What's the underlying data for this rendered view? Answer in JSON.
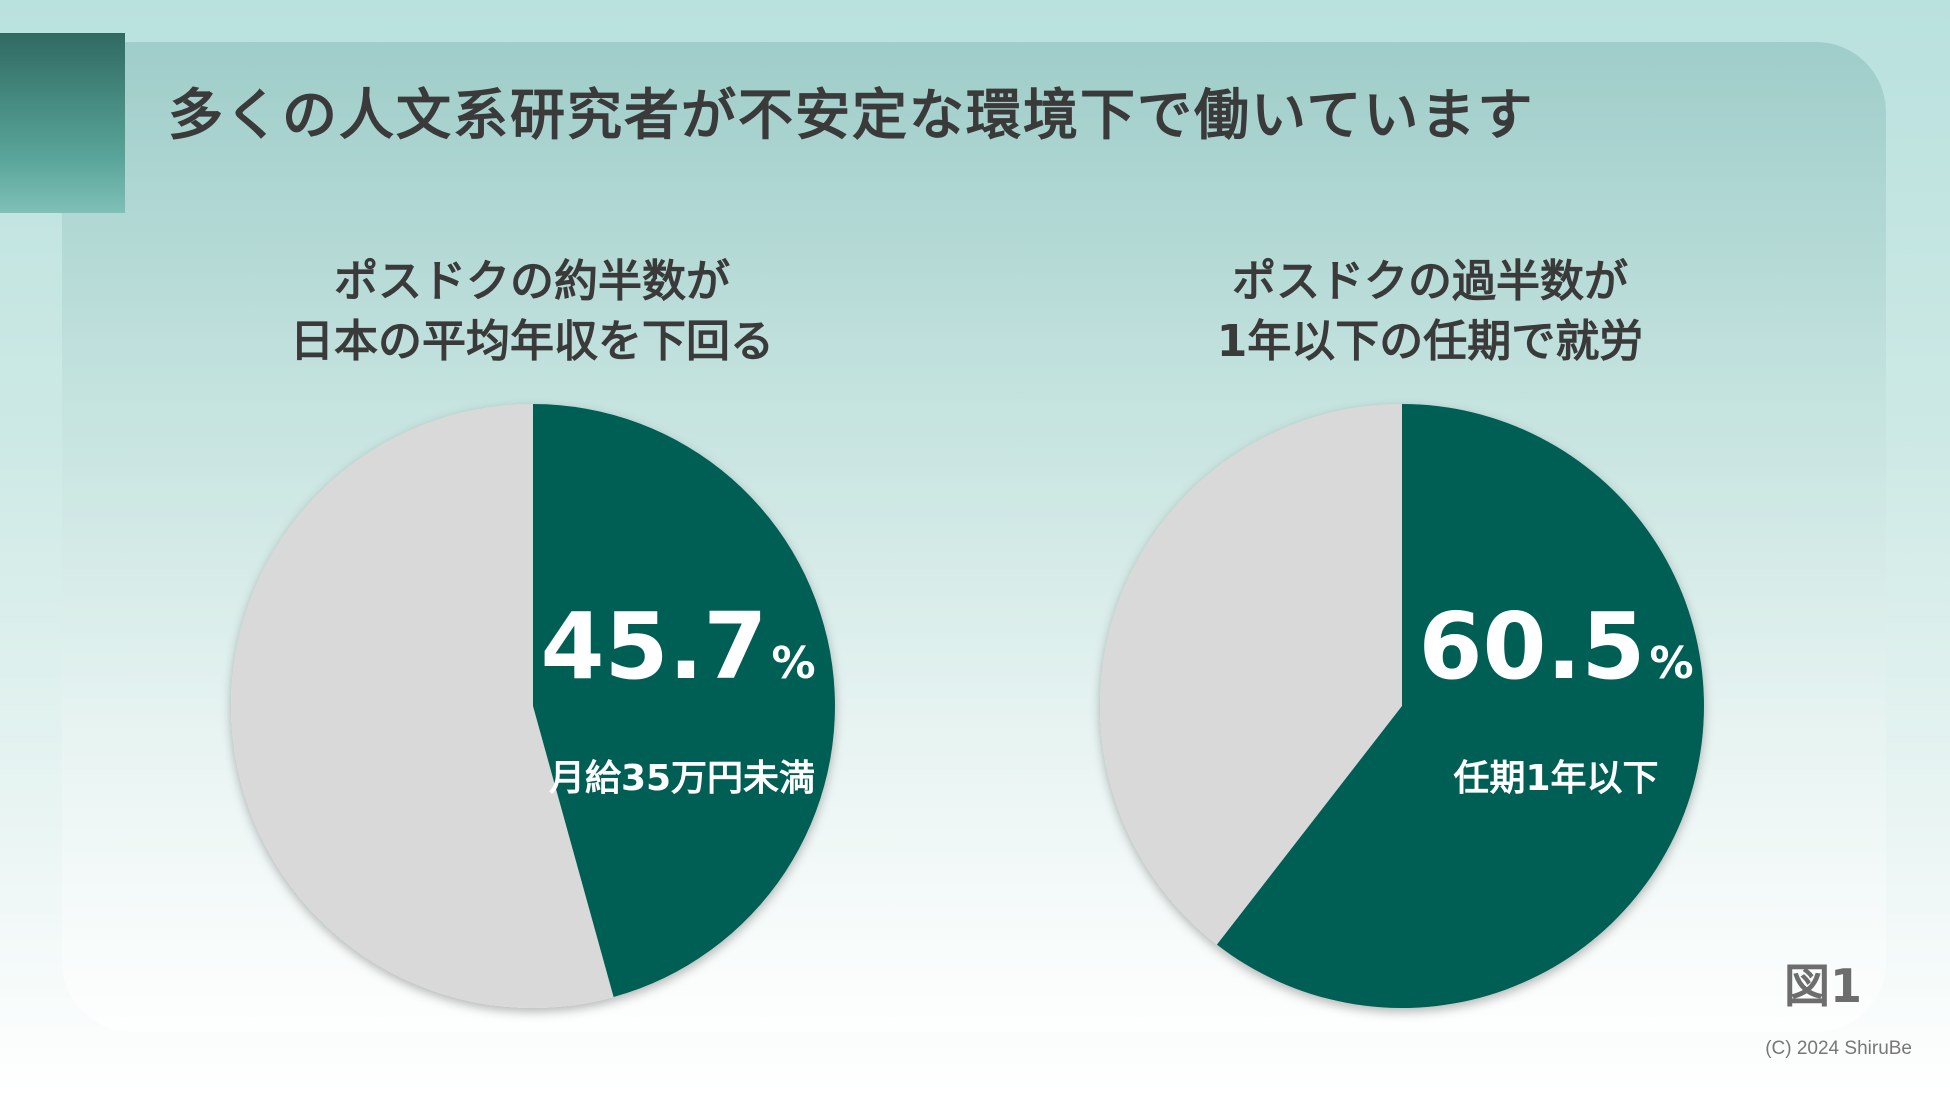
{
  "title": "多くの人文系研究者が不安定な環境下で働いています",
  "figure_label": "図1",
  "copyright": "(C) 2024 ShiruBe",
  "colors": {
    "highlight": "#065e54",
    "remainder": "#d9d9d9",
    "text": "#3a3a3a"
  },
  "chart_data": [
    {
      "type": "pie",
      "subtitle_line1": "ポスドクの約半数が",
      "subtitle_line2": "日本の平均年収を下回る",
      "value_text": "45.7",
      "unit": "%",
      "slice_label": "月給35万円未満",
      "values": [
        45.7,
        54.3
      ]
    },
    {
      "type": "pie",
      "subtitle_line1": "ポスドクの過半数が",
      "subtitle_line2": "1年以下の任期で就労",
      "value_text": "60.5",
      "unit": "%",
      "slice_label": "任期1年以下",
      "values": [
        60.5,
        39.5
      ]
    }
  ]
}
